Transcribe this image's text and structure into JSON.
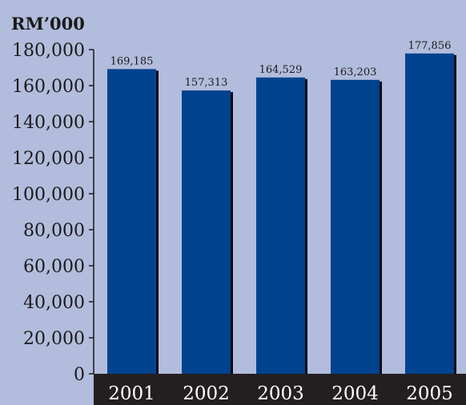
{
  "colors": {
    "background": "#b2bcdc",
    "bar": "#00428e",
    "bar_shadow": "#0a0a14",
    "axis": "#1a1a1a",
    "x_band": "#231f20",
    "x_band_text": "#ffffff"
  },
  "chart_data": {
    "type": "bar",
    "unit_label": "RM’000",
    "categories": [
      "2001",
      "2002",
      "2003",
      "2004",
      "2005"
    ],
    "values": [
      169185,
      157313,
      164529,
      163203,
      177856
    ],
    "data_labels": [
      "169,185",
      "157,313",
      "164,529",
      "163,203",
      "177,856"
    ],
    "y_ticks": [
      "0",
      "20,000",
      "40,000",
      "60,000",
      "80,000",
      "100,000",
      "120,000",
      "140,000",
      "160,000",
      "180,000"
    ],
    "ylim": [
      0,
      180000
    ],
    "grid": false,
    "legend": "none"
  }
}
